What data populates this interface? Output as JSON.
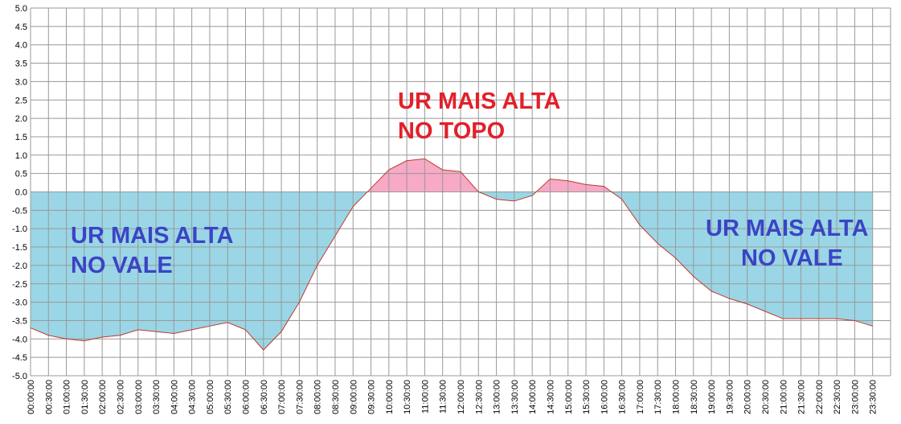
{
  "chart_data": {
    "type": "area",
    "categories": [
      "00:00:00",
      "00:30:00",
      "01:00:00",
      "01:30:00",
      "02:00:00",
      "02:30:00",
      "03:00:00",
      "03:30:00",
      "04:00:00",
      "04:30:00",
      "05:00:00",
      "05:30:00",
      "06:00:00",
      "06:30:00",
      "07:00:00",
      "07:30:00",
      "08:00:00",
      "08:30:00",
      "09:00:00",
      "09:30:00",
      "10:00:00",
      "10:30:00",
      "11:00:00",
      "11:30:00",
      "12:00:00",
      "12:30:00",
      "13:00:00",
      "13:30:00",
      "14:00:00",
      "14:30:00",
      "15:00:00",
      "15:30:00",
      "16:00:00",
      "16:30:00",
      "17:00:00",
      "17:30:00",
      "18:00:00",
      "18:30:00",
      "19:00:00",
      "19:30:00",
      "20:00:00",
      "20:30:00",
      "21:00:00",
      "21:30:00",
      "22:00:00",
      "22:30:00",
      "23:00:00",
      "23:30:00"
    ],
    "series": [
      {
        "color": "#c0392b",
        "negative_fill": "#9ad6e6",
        "positive_fill": "#f7a9c6",
        "values": [
          -3.7,
          -3.9,
          -4.0,
          -4.05,
          -3.95,
          -3.9,
          -3.75,
          -3.8,
          -3.85,
          -3.75,
          -3.65,
          -3.55,
          -3.75,
          -4.3,
          -3.8,
          -3.0,
          -2.0,
          -1.2,
          -0.4,
          0.1,
          0.6,
          0.85,
          0.9,
          0.6,
          0.55,
          0.0,
          -0.2,
          -0.25,
          -0.1,
          0.35,
          0.3,
          0.2,
          0.15,
          -0.2,
          -0.9,
          -1.4,
          -1.8,
          -2.3,
          -2.7,
          -2.9,
          -3.05,
          -3.25,
          -3.45,
          -3.45,
          -3.45,
          -3.45,
          -3.5,
          -3.65
        ]
      }
    ],
    "ylim": [
      -5,
      5
    ],
    "yticks": [
      {
        "value": 5,
        "label": "5.0"
      },
      4.5,
      {
        "value": 4,
        "label": "4.0"
      },
      3.5,
      {
        "value": 3,
        "label": "3.0"
      },
      2.5,
      {
        "value": 2,
        "label": "2.0"
      },
      1.5,
      {
        "value": 1,
        "label": "1.0"
      },
      0.5,
      {
        "value": 0,
        "label": "0.0"
      },
      -0.5,
      {
        "value": -1,
        "label": "-1.0"
      },
      -1.5,
      {
        "value": -2,
        "label": "-2.0"
      },
      -2.5,
      {
        "value": -3,
        "label": "-3.0"
      },
      -3.5,
      {
        "value": -4,
        "label": "-4.0"
      },
      -4.5,
      {
        "value": -5,
        "label": "-5.0"
      }
    ],
    "grid": true,
    "annotations": [
      {
        "lines": [
          "UR MAIS ALTA",
          "NO TOPO"
        ],
        "color": "#e3202a"
      },
      {
        "lines": [
          "UR MAIS ALTA",
          "NO VALE"
        ],
        "color": "#3b44c4"
      },
      {
        "lines": [
          "UR MAIS ALTA",
          "NO VALE"
        ],
        "color": "#3b44c4"
      }
    ]
  }
}
